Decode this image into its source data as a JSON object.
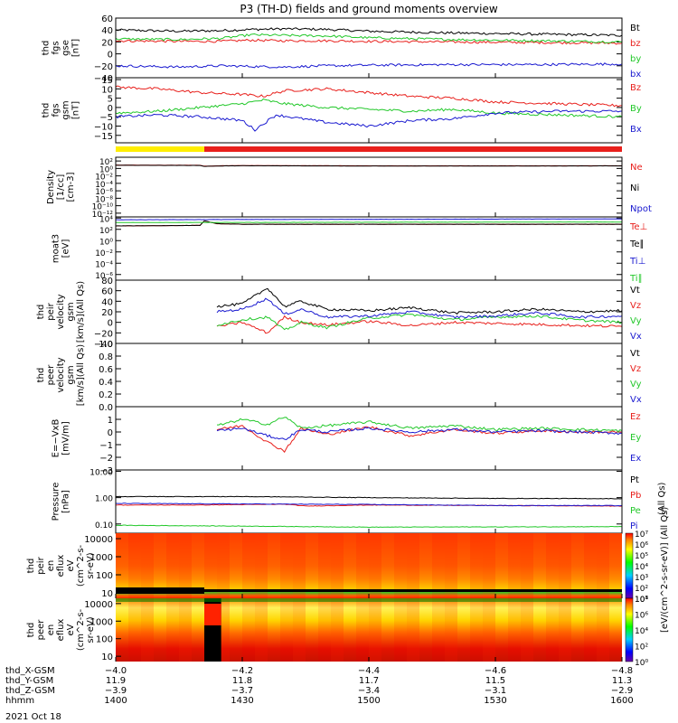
{
  "title": "P3 (TH-D) fields and ground moments overview",
  "colors": {
    "black": "#000000",
    "red": "#e8201c",
    "green": "#22c82a",
    "blue": "#1a1ad0",
    "yellow": "#ffee00"
  },
  "chart_data": [
    {
      "type": "line",
      "name": "fgs",
      "ylabel": [
        "thd",
        "fgs",
        "gse",
        "[nT]"
      ],
      "ylim": [
        -40,
        60
      ],
      "yticks": [
        -20,
        0,
        20,
        40,
        60
      ],
      "ytick_labels": [
        "−20",
        "0",
        "20",
        "40",
        "60"
      ],
      "extra_label": "−40",
      "series": [
        {
          "name": "Bt",
          "color": "black",
          "x": [
            1400,
            1415,
            1425,
            1432,
            1440,
            1450,
            1500,
            1520,
            1540,
            1600
          ],
          "y": [
            40,
            38,
            39,
            41,
            42,
            41,
            38,
            35,
            33,
            31
          ]
        },
        {
          "name": "bz",
          "color": "red",
          "x": [
            1400,
            1415,
            1425,
            1432,
            1440,
            1450,
            1500,
            1520,
            1540,
            1600
          ],
          "y": [
            22,
            21,
            21,
            23,
            22,
            22,
            21,
            20,
            19,
            18
          ]
        },
        {
          "name": "by",
          "color": "green",
          "x": [
            1400,
            1415,
            1425,
            1432,
            1440,
            1450,
            1500,
            1520,
            1540,
            1600
          ],
          "y": [
            25,
            24,
            26,
            32,
            31,
            30,
            27,
            24,
            22,
            20
          ]
        },
        {
          "name": "bx",
          "color": "blue",
          "x": [
            1400,
            1415,
            1425,
            1432,
            1440,
            1450,
            1500,
            1520,
            1540,
            1600
          ],
          "y": [
            -20,
            -22,
            -20,
            -21,
            -22,
            -20,
            -19,
            -18,
            -18,
            -17
          ]
        }
      ]
    },
    {
      "type": "line",
      "name": "fgs_gsm",
      "ylabel": [
        "thd",
        "fgs",
        "gsm",
        "[nT]"
      ],
      "ylim": [
        -19,
        16
      ],
      "yticks": [
        -15,
        -10,
        -5,
        0,
        5,
        10,
        15
      ],
      "ytick_labels": [
        "−15",
        "−10",
        "−5",
        "0",
        "5",
        "10",
        "15"
      ],
      "series": [
        {
          "name": "Bz",
          "color": "red",
          "x": [
            1400,
            1410,
            1420,
            1430,
            1435,
            1440,
            1450,
            1500,
            1510,
            1520,
            1530,
            1545,
            1600
          ],
          "y": [
            11,
            10,
            8,
            7,
            6,
            9,
            10,
            8,
            6,
            5,
            3,
            2,
            1
          ]
        },
        {
          "name": "By",
          "color": "green",
          "x": [
            1400,
            1410,
            1420,
            1430,
            1435,
            1440,
            1450,
            1500,
            1510,
            1520,
            1530,
            1545,
            1600
          ],
          "y": [
            -3,
            -2,
            0,
            2,
            4,
            2,
            0,
            -1,
            -2,
            -1,
            -3,
            -4,
            -5
          ]
        },
        {
          "name": "Bx",
          "color": "blue",
          "x": [
            1400,
            1410,
            1420,
            1430,
            1433,
            1438,
            1450,
            1500,
            1510,
            1520,
            1530,
            1545,
            1600
          ],
          "y": [
            -5,
            -4,
            -5,
            -7,
            -12,
            -4,
            -8,
            -10,
            -7,
            -6,
            -3,
            -2,
            -2
          ]
        }
      ]
    },
    {
      "type": "line",
      "name": "density",
      "ylabel": [
        "Density",
        "[1/cc]",
        "[cm-3]"
      ],
      "ylim": [
        -13,
        3
      ],
      "log": true,
      "yticks": [
        -12,
        -10,
        -8,
        -6,
        -4,
        -2,
        0,
        2
      ],
      "ytick_labels": [
        "10⁻¹²",
        "10⁻¹⁰",
        "10⁻⁸",
        "10⁻⁶",
        "10⁻⁴",
        "10⁻²",
        "10⁰",
        "10²"
      ],
      "series": [
        {
          "name": "Ne",
          "color": "red",
          "x": [
            1400,
            1420,
            1421,
            1424,
            1430,
            1500,
            1530,
            1600
          ],
          "y": [
            0.9,
            0.85,
            0.6,
            0.7,
            0.78,
            0.7,
            0.7,
            0.72
          ]
        },
        {
          "name": "Ni",
          "color": "black",
          "x": [
            1400,
            1420,
            1421,
            1424,
            1430,
            1500,
            1530,
            1600
          ],
          "y": [
            0.85,
            0.8,
            0.55,
            0.65,
            0.72,
            0.65,
            0.65,
            0.68
          ]
        },
        {
          "name": "Npot",
          "color": "blue",
          "x": [],
          "y": []
        }
      ]
    },
    {
      "type": "line",
      "name": "temp",
      "ylabel": [
        "moat3",
        "[eV]"
      ],
      "ylim": [
        -7,
        4.2
      ],
      "log": true,
      "yticks": [
        -6,
        -4,
        -2,
        0,
        2,
        4
      ],
      "ytick_labels": [
        "10⁻⁶",
        "10⁻⁴",
        "10⁻²",
        "10⁰",
        "10²",
        "10⁴"
      ],
      "series": [
        {
          "name": "Te⊥",
          "color": "red",
          "x": [
            1400,
            1420,
            1421,
            1424,
            1430,
            1600
          ],
          "y": [
            2.6,
            2.7,
            3.5,
            3.0,
            2.9,
            2.9
          ]
        },
        {
          "name": "Te∥",
          "color": "black",
          "x": [
            1400,
            1420,
            1421,
            1424,
            1430,
            1600
          ],
          "y": [
            2.6,
            2.7,
            3.5,
            3.0,
            2.9,
            2.9
          ]
        },
        {
          "name": "Ti⊥",
          "color": "blue",
          "x": [
            1400,
            1600
          ],
          "y": [
            3.7,
            3.85
          ]
        },
        {
          "name": "Ti∥",
          "color": "green",
          "x": [
            1400,
            1600
          ],
          "y": [
            3.2,
            3.3
          ]
        }
      ]
    },
    {
      "type": "line",
      "name": "peir_velocity",
      "ylabel": [
        "thd",
        "peir",
        "velocity",
        "gsm",
        "[km/s](All Qs)"
      ],
      "ylim": [
        -40,
        80
      ],
      "yticks": [
        -20,
        0,
        20,
        40,
        60,
        80
      ],
      "ytick_labels": [
        "−20",
        "0",
        "20",
        "40",
        "60",
        "80"
      ],
      "extra_label": "−40",
      "series": [
        {
          "name": "Vt",
          "color": "black",
          "x": [
            1424,
            1430,
            1436,
            1440,
            1444,
            1450,
            1500,
            1510,
            1520,
            1530,
            1540,
            1550,
            1600
          ],
          "y": [
            30,
            35,
            65,
            30,
            40,
            25,
            22,
            28,
            18,
            20,
            25,
            20,
            22
          ]
        },
        {
          "name": "Vz",
          "color": "red",
          "x": [
            1424,
            1430,
            1436,
            1440,
            1444,
            1450,
            1500,
            1510,
            1520,
            1530,
            1540,
            1550,
            1600
          ],
          "y": [
            -8,
            0,
            -20,
            10,
            0,
            -5,
            2,
            -6,
            0,
            -2,
            -4,
            -6,
            -8
          ]
        },
        {
          "name": "Vy",
          "color": "green",
          "x": [
            1424,
            1430,
            1436,
            1440,
            1444,
            1450,
            1500,
            1510,
            1520,
            1530,
            1540,
            1550,
            1600
          ],
          "y": [
            -5,
            5,
            10,
            -15,
            0,
            -10,
            8,
            15,
            5,
            10,
            12,
            4,
            0
          ]
        },
        {
          "name": "Vx",
          "color": "blue",
          "x": [
            1424,
            1430,
            1436,
            1440,
            1444,
            1450,
            1500,
            1510,
            1520,
            1530,
            1540,
            1550,
            1600
          ],
          "y": [
            20,
            25,
            45,
            15,
            25,
            10,
            12,
            20,
            10,
            12,
            18,
            10,
            12
          ]
        }
      ]
    },
    {
      "type": "line",
      "name": "peer_velocity",
      "ylabel": [
        "thd",
        "peer",
        "velocity",
        "gsm",
        "[km/s](All Qs)"
      ],
      "ylim": [
        0,
        1
      ],
      "yticks": [
        0,
        0.2,
        0.4,
        0.6,
        0.8,
        1.0
      ],
      "ytick_labels": [
        "0.0",
        "0.2",
        "0.4",
        "0.6",
        "0.8",
        "1.0"
      ],
      "series": [
        {
          "name": "Vt",
          "color": "black",
          "x": [],
          "y": []
        },
        {
          "name": "Vz",
          "color": "red",
          "x": [],
          "y": []
        },
        {
          "name": "Vy",
          "color": "green",
          "x": [],
          "y": []
        },
        {
          "name": "Vx",
          "color": "blue",
          "x": [],
          "y": []
        }
      ]
    },
    {
      "type": "line",
      "name": "efield",
      "ylabel": [
        "E=−VxB",
        "[mV/m]"
      ],
      "ylim": [
        -3,
        2
      ],
      "yticks": [
        -2,
        -1,
        0,
        1
      ],
      "ytick_labels": [
        "−2",
        "−1",
        "0",
        "1"
      ],
      "extra_label": "−3",
      "series": [
        {
          "name": "Ez",
          "color": "red",
          "x": [
            1424,
            1430,
            1436,
            1440,
            1444,
            1450,
            1500,
            1510,
            1520,
            1530,
            1540,
            1550,
            1600
          ],
          "y": [
            0.2,
            0.5,
            -0.8,
            -1.5,
            0.3,
            -0.2,
            0.4,
            -0.3,
            0.2,
            -0.1,
            0.1,
            0,
            0
          ]
        },
        {
          "name": "Ey",
          "color": "green",
          "x": [
            1424,
            1430,
            1436,
            1440,
            1444,
            1450,
            1500,
            1510,
            1520,
            1530,
            1540,
            1550,
            1600
          ],
          "y": [
            0.5,
            1.0,
            0.6,
            1.2,
            0.3,
            0.5,
            0.8,
            0.3,
            0.5,
            0.2,
            0.3,
            0.2,
            0.1
          ]
        },
        {
          "name": "Ex",
          "color": "blue",
          "x": [
            1424,
            1430,
            1436,
            1440,
            1444,
            1450,
            1500,
            1510,
            1520,
            1530,
            1540,
            1550,
            1600
          ],
          "y": [
            0.1,
            0.3,
            -0.3,
            -0.6,
            0.2,
            0,
            0.3,
            0,
            0.2,
            0,
            0.1,
            0,
            -0.1
          ]
        }
      ]
    },
    {
      "type": "line",
      "name": "pressure",
      "ylabel": [
        "Pressure",
        "[nPa]"
      ],
      "ylim": [
        -1.35,
        1.05
      ],
      "log": true,
      "yticks": [
        -1,
        0,
        1
      ],
      "ytick_labels": [
        "0.10",
        "1.00",
        "10.00"
      ],
      "right_label": "(All Qs)",
      "series": [
        {
          "name": "Pt",
          "color": "black",
          "x": [
            1400,
            1430,
            1500,
            1530,
            1600
          ],
          "y": [
            0.04,
            0.04,
            0.0,
            -0.03,
            -0.04
          ]
        },
        {
          "name": "Pb",
          "color": "red",
          "x": [
            1400,
            1420,
            1440,
            1445,
            1500,
            1530,
            1600
          ],
          "y": [
            -0.28,
            -0.28,
            -0.25,
            -0.32,
            -0.28,
            -0.3,
            -0.32
          ]
        },
        {
          "name": "Pe",
          "color": "green",
          "x": [
            1400,
            1430,
            1500,
            1600
          ],
          "y": [
            -1.05,
            -1.08,
            -1.12,
            -1.1
          ]
        },
        {
          "name": "Pi",
          "color": "blue",
          "x": [
            1400,
            1430,
            1500,
            1530,
            1600
          ],
          "y": [
            -0.22,
            -0.24,
            -0.26,
            -0.3,
            -0.3
          ]
        }
      ]
    },
    {
      "type": "heatmap",
      "name": "peir_eflux",
      "ylabel": [
        "thd",
        "peir",
        "en",
        "eflux",
        "eV",
        "(cm^2-s-",
        "sr-eV)"
      ],
      "ylim": [
        5,
        20000
      ],
      "log": true,
      "yticks": [
        10,
        100,
        1000,
        10000
      ],
      "ytick_labels": [
        "10",
        "100",
        "1000",
        "10000"
      ],
      "colorbar": {
        "label": "[eV/(cm^2-s-sr-eV)] (All Qs)",
        "range": [
          1,
          7
        ],
        "tick_labels": [
          "10¹",
          "10²",
          "10³",
          "10⁴",
          "10⁵",
          "10⁶",
          "10⁷"
        ]
      }
    },
    {
      "type": "heatmap",
      "name": "peer_eflux",
      "ylabel": [
        "thd",
        "peer",
        "en",
        "eflux",
        "eV",
        "(cm^2-s-",
        "sr-eV)"
      ],
      "ylim": [
        5,
        20000
      ],
      "log": true,
      "yticks": [
        10,
        100,
        1000,
        10000
      ],
      "ytick_labels": [
        "10",
        "100",
        "1000",
        "10000"
      ],
      "colorbar": {
        "label": "[eV/(cm^2-s-sr-eV)] (All Qs)",
        "range": [
          0,
          8
        ],
        "tick_labels": [
          "10⁰",
          "10²",
          "10⁴",
          "10⁶",
          "10⁸"
        ]
      }
    }
  ],
  "status_bar": {
    "segments": [
      {
        "color": "yellow",
        "from": 1400,
        "to": 1421
      },
      {
        "color": "red",
        "from": 1421,
        "to": 1600
      }
    ]
  },
  "xaxis": {
    "range": [
      1400,
      1600
    ],
    "rows": [
      {
        "label": "thd_X-GSM",
        "values": [
          "−4.0",
          "−4.2",
          "−4.4",
          "−4.6",
          "−4.8"
        ]
      },
      {
        "label": "thd_Y-GSM",
        "values": [
          "11.9",
          "11.8",
          "11.7",
          "11.5",
          "11.3"
        ]
      },
      {
        "label": "thd_Z-GSM",
        "values": [
          "−3.9",
          "−3.7",
          "−3.4",
          "−3.1",
          "−2.9"
        ]
      },
      {
        "label": "hhmm",
        "values": [
          "1400",
          "1430",
          "1500",
          "1530",
          "1600"
        ]
      }
    ],
    "date": "2021 Oct 18"
  }
}
